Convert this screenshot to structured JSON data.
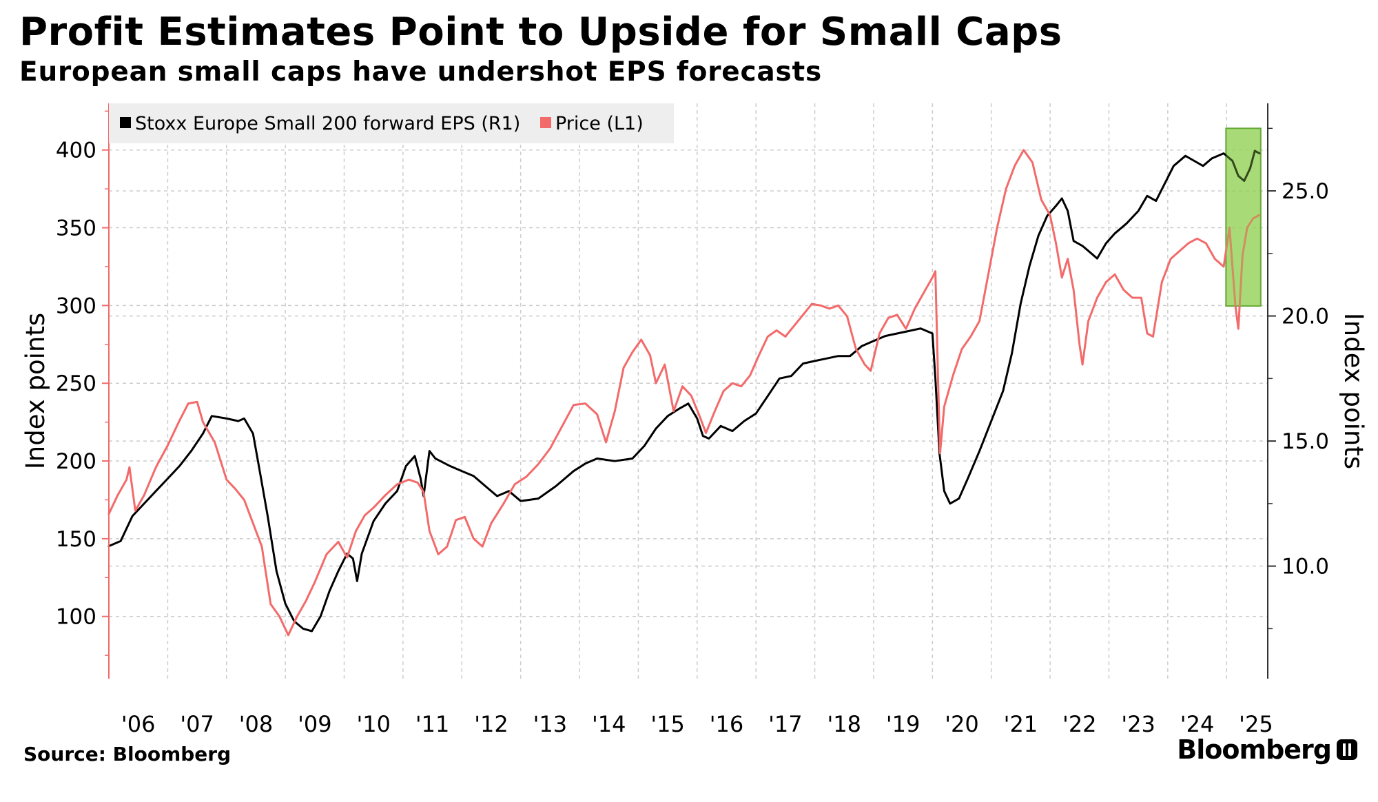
{
  "header": {
    "title": "Profit Estimates Point to Upside for Small Caps",
    "subtitle": "European small caps have undershot EPS forecasts"
  },
  "footer": {
    "source": "Source: Bloomberg",
    "brand": "Bloomberg"
  },
  "colors": {
    "eps": "#000000",
    "price": "#f36a6a",
    "highlight_fill": "#8fd14f",
    "highlight_stroke": "#5aa02c",
    "grid": "#cccccc",
    "axis": "#333333",
    "legend_bg": "#eeeeee"
  },
  "chart_data": {
    "type": "line",
    "x_tick_labels": [
      "'06",
      "'07",
      "'08",
      "'09",
      "'10",
      "'11",
      "'12",
      "'13",
      "'14",
      "'15",
      "'16",
      "'17",
      "'18",
      "'19",
      "'20",
      "'21",
      "'22",
      "'23",
      "'24",
      "'25"
    ],
    "x_range": [
      2006.0,
      2025.7
    ],
    "left_axis": {
      "label": "Index points",
      "ticks": [
        100,
        150,
        200,
        250,
        300,
        350,
        400
      ],
      "range": [
        60,
        430
      ]
    },
    "right_axis": {
      "label": "Index points",
      "ticks": [
        "10.0",
        "15.0",
        "20.0",
        "25.0"
      ],
      "range": [
        5.5,
        28.5
      ]
    },
    "legend_placement": "top-left",
    "grid": true,
    "highlight": {
      "x_from": 2024.99,
      "x_to": 2025.58,
      "y_from": 20.4,
      "y_to": 27.5,
      "axis": "right",
      "label": ""
    },
    "series": [
      {
        "name": "Stoxx Europe Small 200 forward EPS (R1)",
        "axis": "right",
        "color": "#000000",
        "points": [
          [
            2006.0,
            10.8
          ],
          [
            2006.2,
            11.0
          ],
          [
            2006.4,
            12.0
          ],
          [
            2006.6,
            12.5
          ],
          [
            2006.8,
            13.0
          ],
          [
            2007.0,
            13.5
          ],
          [
            2007.2,
            14.0
          ],
          [
            2007.4,
            14.6
          ],
          [
            2007.6,
            15.3
          ],
          [
            2007.75,
            16.0
          ],
          [
            2008.0,
            15.9
          ],
          [
            2008.2,
            15.8
          ],
          [
            2008.3,
            15.9
          ],
          [
            2008.45,
            15.3
          ],
          [
            2008.55,
            14.0
          ],
          [
            2008.7,
            12.0
          ],
          [
            2008.85,
            9.8
          ],
          [
            2009.0,
            8.5
          ],
          [
            2009.15,
            7.8
          ],
          [
            2009.3,
            7.5
          ],
          [
            2009.45,
            7.4
          ],
          [
            2009.6,
            8.0
          ],
          [
            2009.75,
            9.0
          ],
          [
            2009.9,
            9.8
          ],
          [
            2010.05,
            10.5
          ],
          [
            2010.15,
            10.3
          ],
          [
            2010.22,
            9.4
          ],
          [
            2010.3,
            10.5
          ],
          [
            2010.5,
            11.8
          ],
          [
            2010.7,
            12.5
          ],
          [
            2010.9,
            13.0
          ],
          [
            2011.05,
            14.0
          ],
          [
            2011.2,
            14.4
          ],
          [
            2011.3,
            13.5
          ],
          [
            2011.35,
            12.8
          ],
          [
            2011.45,
            14.6
          ],
          [
            2011.55,
            14.3
          ],
          [
            2011.8,
            14.0
          ],
          [
            2012.0,
            13.8
          ],
          [
            2012.2,
            13.6
          ],
          [
            2012.4,
            13.2
          ],
          [
            2012.6,
            12.8
          ],
          [
            2012.8,
            13.0
          ],
          [
            2013.0,
            12.6
          ],
          [
            2013.3,
            12.7
          ],
          [
            2013.6,
            13.2
          ],
          [
            2013.9,
            13.8
          ],
          [
            2014.1,
            14.1
          ],
          [
            2014.3,
            14.3
          ],
          [
            2014.6,
            14.2
          ],
          [
            2014.9,
            14.3
          ],
          [
            2015.1,
            14.8
          ],
          [
            2015.3,
            15.5
          ],
          [
            2015.5,
            16.0
          ],
          [
            2015.7,
            16.3
          ],
          [
            2015.85,
            16.5
          ],
          [
            2016.0,
            15.9
          ],
          [
            2016.1,
            15.2
          ],
          [
            2016.2,
            15.1
          ],
          [
            2016.4,
            15.6
          ],
          [
            2016.6,
            15.4
          ],
          [
            2016.8,
            15.8
          ],
          [
            2017.0,
            16.1
          ],
          [
            2017.2,
            16.8
          ],
          [
            2017.4,
            17.5
          ],
          [
            2017.6,
            17.6
          ],
          [
            2017.8,
            18.1
          ],
          [
            2018.0,
            18.2
          ],
          [
            2018.2,
            18.3
          ],
          [
            2018.4,
            18.4
          ],
          [
            2018.6,
            18.4
          ],
          [
            2018.8,
            18.8
          ],
          [
            2019.0,
            19.0
          ],
          [
            2019.2,
            19.2
          ],
          [
            2019.4,
            19.3
          ],
          [
            2019.6,
            19.4
          ],
          [
            2019.8,
            19.5
          ],
          [
            2020.0,
            19.3
          ],
          [
            2020.05,
            17.5
          ],
          [
            2020.12,
            14.5
          ],
          [
            2020.2,
            13.0
          ],
          [
            2020.3,
            12.5
          ],
          [
            2020.45,
            12.7
          ],
          [
            2020.6,
            13.5
          ],
          [
            2020.8,
            14.6
          ],
          [
            2021.0,
            15.8
          ],
          [
            2021.2,
            17.0
          ],
          [
            2021.35,
            18.5
          ],
          [
            2021.5,
            20.5
          ],
          [
            2021.65,
            22.0
          ],
          [
            2021.8,
            23.2
          ],
          [
            2021.95,
            24.0
          ],
          [
            2022.1,
            24.4
          ],
          [
            2022.2,
            24.7
          ],
          [
            2022.3,
            24.2
          ],
          [
            2022.4,
            23.0
          ],
          [
            2022.55,
            22.8
          ],
          [
            2022.7,
            22.5
          ],
          [
            2022.8,
            22.3
          ],
          [
            2022.95,
            22.9
          ],
          [
            2023.1,
            23.3
          ],
          [
            2023.3,
            23.7
          ],
          [
            2023.5,
            24.2
          ],
          [
            2023.65,
            24.8
          ],
          [
            2023.8,
            24.6
          ],
          [
            2023.95,
            25.3
          ],
          [
            2024.1,
            26.0
          ],
          [
            2024.3,
            26.4
          ],
          [
            2024.45,
            26.2
          ],
          [
            2024.6,
            26.0
          ],
          [
            2024.75,
            26.3
          ],
          [
            2024.95,
            26.5
          ],
          [
            2025.1,
            26.2
          ],
          [
            2025.2,
            25.6
          ],
          [
            2025.3,
            25.4
          ],
          [
            2025.4,
            25.9
          ],
          [
            2025.48,
            26.6
          ],
          [
            2025.56,
            26.5
          ]
        ]
      },
      {
        "name": "Price (L1)",
        "axis": "left",
        "color": "#f36a6a",
        "points": [
          [
            2006.0,
            166
          ],
          [
            2006.15,
            178
          ],
          [
            2006.3,
            188
          ],
          [
            2006.35,
            196
          ],
          [
            2006.45,
            168
          ],
          [
            2006.6,
            178
          ],
          [
            2006.8,
            196
          ],
          [
            2007.0,
            210
          ],
          [
            2007.2,
            226
          ],
          [
            2007.35,
            237
          ],
          [
            2007.5,
            238
          ],
          [
            2007.6,
            225
          ],
          [
            2007.8,
            212
          ],
          [
            2008.0,
            188
          ],
          [
            2008.15,
            182
          ],
          [
            2008.3,
            175
          ],
          [
            2008.45,
            160
          ],
          [
            2008.6,
            145
          ],
          [
            2008.75,
            108
          ],
          [
            2008.9,
            100
          ],
          [
            2009.05,
            88
          ],
          [
            2009.2,
            100
          ],
          [
            2009.35,
            110
          ],
          [
            2009.5,
            122
          ],
          [
            2009.7,
            140
          ],
          [
            2009.9,
            148
          ],
          [
            2010.05,
            138
          ],
          [
            2010.2,
            155
          ],
          [
            2010.35,
            165
          ],
          [
            2010.5,
            170
          ],
          [
            2010.7,
            178
          ],
          [
            2010.9,
            185
          ],
          [
            2011.1,
            188
          ],
          [
            2011.25,
            186
          ],
          [
            2011.35,
            180
          ],
          [
            2011.45,
            155
          ],
          [
            2011.6,
            140
          ],
          [
            2011.75,
            145
          ],
          [
            2011.9,
            162
          ],
          [
            2012.05,
            164
          ],
          [
            2012.2,
            150
          ],
          [
            2012.35,
            145
          ],
          [
            2012.5,
            160
          ],
          [
            2012.7,
            172
          ],
          [
            2012.9,
            185
          ],
          [
            2013.1,
            190
          ],
          [
            2013.3,
            198
          ],
          [
            2013.5,
            208
          ],
          [
            2013.7,
            222
          ],
          [
            2013.9,
            236
          ],
          [
            2014.1,
            237
          ],
          [
            2014.3,
            230
          ],
          [
            2014.45,
            212
          ],
          [
            2014.6,
            232
          ],
          [
            2014.75,
            260
          ],
          [
            2014.9,
            270
          ],
          [
            2015.05,
            278
          ],
          [
            2015.2,
            268
          ],
          [
            2015.3,
            250
          ],
          [
            2015.45,
            262
          ],
          [
            2015.6,
            232
          ],
          [
            2015.75,
            248
          ],
          [
            2015.9,
            242
          ],
          [
            2016.05,
            228
          ],
          [
            2016.15,
            218
          ],
          [
            2016.3,
            232
          ],
          [
            2016.45,
            245
          ],
          [
            2016.6,
            250
          ],
          [
            2016.75,
            248
          ],
          [
            2016.9,
            255
          ],
          [
            2017.05,
            268
          ],
          [
            2017.2,
            280
          ],
          [
            2017.35,
            284
          ],
          [
            2017.5,
            280
          ],
          [
            2017.65,
            287
          ],
          [
            2017.8,
            294
          ],
          [
            2017.95,
            301
          ],
          [
            2018.1,
            300
          ],
          [
            2018.25,
            298
          ],
          [
            2018.4,
            300
          ],
          [
            2018.55,
            293
          ],
          [
            2018.7,
            272
          ],
          [
            2018.85,
            262
          ],
          [
            2018.95,
            258
          ],
          [
            2019.1,
            282
          ],
          [
            2019.25,
            292
          ],
          [
            2019.4,
            294
          ],
          [
            2019.55,
            285
          ],
          [
            2019.7,
            298
          ],
          [
            2019.85,
            308
          ],
          [
            2020.0,
            318
          ],
          [
            2020.05,
            322
          ],
          [
            2020.1,
            245
          ],
          [
            2020.13,
            205
          ],
          [
            2020.2,
            235
          ],
          [
            2020.35,
            255
          ],
          [
            2020.5,
            272
          ],
          [
            2020.65,
            280
          ],
          [
            2020.8,
            290
          ],
          [
            2020.95,
            320
          ],
          [
            2021.1,
            350
          ],
          [
            2021.25,
            375
          ],
          [
            2021.4,
            390
          ],
          [
            2021.55,
            400
          ],
          [
            2021.7,
            392
          ],
          [
            2021.85,
            368
          ],
          [
            2022.0,
            358
          ],
          [
            2022.1,
            340
          ],
          [
            2022.2,
            318
          ],
          [
            2022.3,
            330
          ],
          [
            2022.4,
            310
          ],
          [
            2022.5,
            275
          ],
          [
            2022.55,
            262
          ],
          [
            2022.65,
            290
          ],
          [
            2022.8,
            305
          ],
          [
            2022.95,
            315
          ],
          [
            2023.1,
            320
          ],
          [
            2023.25,
            310
          ],
          [
            2023.4,
            305
          ],
          [
            2023.55,
            305
          ],
          [
            2023.65,
            282
          ],
          [
            2023.75,
            280
          ],
          [
            2023.9,
            315
          ],
          [
            2024.05,
            330
          ],
          [
            2024.2,
            335
          ],
          [
            2024.35,
            340
          ],
          [
            2024.5,
            343
          ],
          [
            2024.65,
            340
          ],
          [
            2024.8,
            330
          ],
          [
            2024.95,
            325
          ],
          [
            2025.05,
            350
          ],
          [
            2025.15,
            300
          ],
          [
            2025.2,
            285
          ],
          [
            2025.27,
            332
          ],
          [
            2025.35,
            350
          ],
          [
            2025.45,
            356
          ],
          [
            2025.55,
            358
          ]
        ]
      }
    ]
  }
}
